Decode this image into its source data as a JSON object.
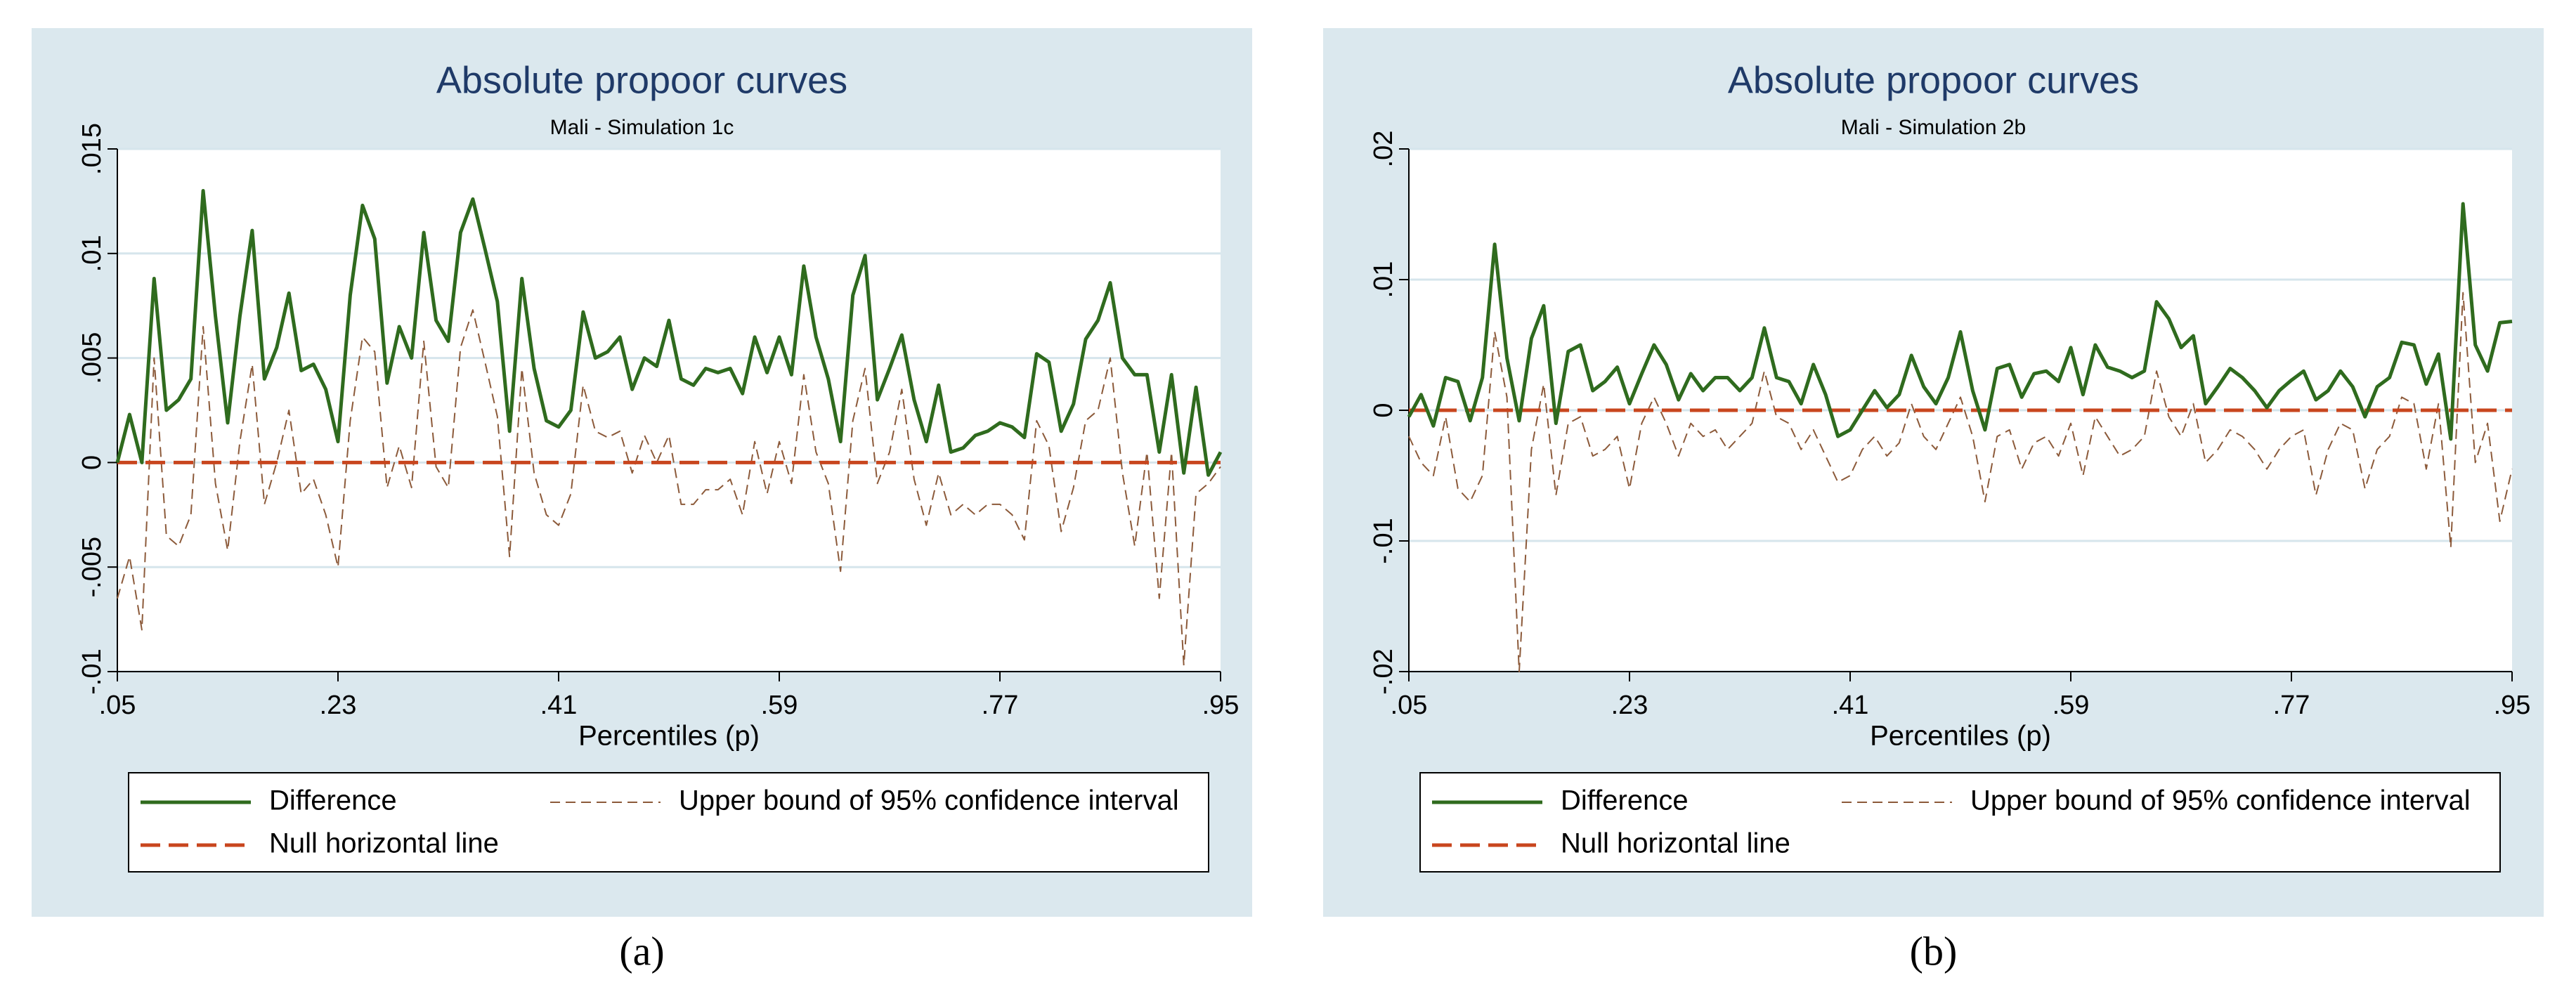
{
  "chart_data": [
    {
      "type": "line",
      "title": "Absolute propoor curves",
      "subtitle": "Mali - Simulation 1c",
      "panel_label": "(a)",
      "x_label": "Percentiles (p)",
      "x": [
        0.05,
        0.06,
        0.07,
        0.08,
        0.09,
        0.1,
        0.11,
        0.12,
        0.13,
        0.14,
        0.15,
        0.16,
        0.17,
        0.18,
        0.19,
        0.2,
        0.21,
        0.22,
        0.23,
        0.24,
        0.25,
        0.26,
        0.27,
        0.28,
        0.29,
        0.3,
        0.31,
        0.32,
        0.33,
        0.34,
        0.35,
        0.36,
        0.37,
        0.38,
        0.39,
        0.4,
        0.41,
        0.42,
        0.43,
        0.44,
        0.45,
        0.46,
        0.47,
        0.48,
        0.49,
        0.5,
        0.51,
        0.52,
        0.53,
        0.54,
        0.55,
        0.56,
        0.57,
        0.58,
        0.59,
        0.6,
        0.61,
        0.62,
        0.63,
        0.64,
        0.65,
        0.66,
        0.67,
        0.68,
        0.69,
        0.7,
        0.71,
        0.72,
        0.73,
        0.74,
        0.75,
        0.76,
        0.77,
        0.78,
        0.79,
        0.8,
        0.81,
        0.82,
        0.83,
        0.84,
        0.85,
        0.86,
        0.87,
        0.88,
        0.89,
        0.9,
        0.91,
        0.92,
        0.93,
        0.94,
        0.95
      ],
      "series": [
        {
          "name": "Difference",
          "color": "#2f6b1e",
          "dash": "solid",
          "values": [
            0,
            0.0023,
            0,
            0.0088,
            0.0025,
            0.003,
            0.004,
            0.013,
            0.007,
            0.0019,
            0.007,
            0.0111,
            0.004,
            0.0055,
            0.0081,
            0.0044,
            0.0047,
            0.0035,
            0.001,
            0.008,
            0.0123,
            0.0107,
            0.0038,
            0.0065,
            0.005,
            0.011,
            0.0068,
            0.0058,
            0.011,
            0.0126,
            0.0102,
            0.0077,
            0.0015,
            0.0088,
            0.0045,
            0.002,
            0.0017,
            0.0025,
            0.0072,
            0.005,
            0.0053,
            0.006,
            0.0035,
            0.005,
            0.0046,
            0.0068,
            0.004,
            0.0037,
            0.0045,
            0.0043,
            0.0045,
            0.0033,
            0.006,
            0.0043,
            0.006,
            0.0042,
            0.0094,
            0.006,
            0.004,
            0.001,
            0.008,
            0.0099,
            0.003,
            0.0045,
            0.0061,
            0.003,
            0.001,
            0.0037,
            0.0005,
            0.0007,
            0.0013,
            0.0015,
            0.0019,
            0.0017,
            0.0012,
            0.0052,
            0.0048,
            0.0015,
            0.0028,
            0.0059,
            0.0068,
            0.0086,
            0.005,
            0.0042,
            0.0042,
            0.0005,
            0.0042,
            -0.0005,
            0.0036,
            -0.0006,
            0.0005
          ]
        },
        {
          "name": "Upper bound of 95% confidence interval",
          "color": "#8c5a3a",
          "dash": "dashed",
          "values": [
            -0.0065,
            -0.0045,
            -0.008,
            0.005,
            -0.0035,
            -0.004,
            -0.0025,
            0.0065,
            -0.001,
            -0.0042,
            0.001,
            0.0047,
            -0.002,
            0,
            0.0025,
            -0.0015,
            -0.0008,
            -0.0025,
            -0.005,
            0.002,
            0.006,
            0.0053,
            -0.0012,
            0.0008,
            -0.0012,
            0.0058,
            -0.0002,
            -0.0012,
            0.0055,
            0.0073,
            0.0048,
            0.0022,
            -0.0045,
            0.0045,
            -0.0005,
            -0.0025,
            -0.003,
            -0.0015,
            0.0037,
            0.0015,
            0.0012,
            0.0015,
            -0.0005,
            0.0013,
            0,
            0.0013,
            -0.002,
            -0.002,
            -0.0013,
            -0.0013,
            -0.0008,
            -0.0025,
            0.001,
            -0.0015,
            0.001,
            -0.001,
            0.0042,
            0.0005,
            -0.001,
            -0.0052,
            0.002,
            0.0045,
            -0.001,
            0.0005,
            0.0035,
            -0.0008,
            -0.003,
            -0.0005,
            -0.0025,
            -0.002,
            -0.0025,
            -0.002,
            -0.002,
            -0.0025,
            -0.0037,
            0.002,
            0.0008,
            -0.0033,
            -0.0012,
            0.002,
            0.0025,
            0.005,
            -0.0005,
            -0.004,
            0.0005,
            -0.0065,
            0.0005,
            -0.0097,
            -0.0015,
            -0.001,
            -0.0002
          ]
        }
      ],
      "hline": {
        "name": "Null horizontal line",
        "color": "#c8461e",
        "value": 0
      },
      "xlim": [
        0.05,
        0.95
      ],
      "xticks": [
        {
          "value": 0.05,
          "label": ".05"
        },
        {
          "value": 0.23,
          "label": ".23"
        },
        {
          "value": 0.41,
          "label": ".41"
        },
        {
          "value": 0.59,
          "label": ".59"
        },
        {
          "value": 0.77,
          "label": ".77"
        },
        {
          "value": 0.95,
          "label": ".95"
        }
      ],
      "ylim": [
        -0.01,
        0.015
      ],
      "yticks": [
        {
          "value": -0.01,
          "label": "-.01"
        },
        {
          "value": -0.005,
          "label": "-.005"
        },
        0,
        {
          "value": 0.005,
          "label": ".005"
        },
        {
          "value": 0.01,
          "label": ".01"
        },
        {
          "value": 0.015,
          "label": ".015"
        }
      ],
      "grid": true
    },
    {
      "type": "line",
      "title": "Absolute propoor curves",
      "subtitle": "Mali - Simulation 2b",
      "panel_label": "(b)",
      "x_label": "Percentiles (p)",
      "x": [
        0.05,
        0.06,
        0.07,
        0.08,
        0.09,
        0.1,
        0.11,
        0.12,
        0.13,
        0.14,
        0.15,
        0.16,
        0.17,
        0.18,
        0.19,
        0.2,
        0.21,
        0.22,
        0.23,
        0.24,
        0.25,
        0.26,
        0.27,
        0.28,
        0.29,
        0.3,
        0.31,
        0.32,
        0.33,
        0.34,
        0.35,
        0.36,
        0.37,
        0.38,
        0.39,
        0.4,
        0.41,
        0.42,
        0.43,
        0.44,
        0.45,
        0.46,
        0.47,
        0.48,
        0.49,
        0.5,
        0.51,
        0.52,
        0.53,
        0.54,
        0.55,
        0.56,
        0.57,
        0.58,
        0.59,
        0.6,
        0.61,
        0.62,
        0.63,
        0.64,
        0.65,
        0.66,
        0.67,
        0.68,
        0.69,
        0.7,
        0.71,
        0.72,
        0.73,
        0.74,
        0.75,
        0.76,
        0.77,
        0.78,
        0.79,
        0.8,
        0.81,
        0.82,
        0.83,
        0.84,
        0.85,
        0.86,
        0.87,
        0.88,
        0.89,
        0.9,
        0.91,
        0.92,
        0.93,
        0.94,
        0.95
      ],
      "series": [
        {
          "name": "Difference",
          "color": "#2f6b1e",
          "dash": "solid",
          "values": [
            -0.0005,
            0.0012,
            -0.0012,
            0.0025,
            0.0022,
            -0.0008,
            0.0025,
            0.0127,
            0.004,
            -0.0008,
            0.0055,
            0.008,
            -0.001,
            0.0045,
            0.005,
            0.0015,
            0.0022,
            0.0033,
            0.0005,
            0.0028,
            0.005,
            0.0035,
            0.0008,
            0.0028,
            0.0015,
            0.0025,
            0.0025,
            0.0015,
            0.0025,
            0.0063,
            0.0025,
            0.0022,
            0.0005,
            0.0035,
            0.0012,
            -0.002,
            -0.0015,
            0,
            0.0015,
            0.0002,
            0.0012,
            0.0042,
            0.0018,
            0.0005,
            0.0025,
            0.006,
            0.0015,
            -0.0015,
            0.0032,
            0.0035,
            0.001,
            0.0028,
            0.003,
            0.0022,
            0.0048,
            0.0012,
            0.005,
            0.0033,
            0.003,
            0.0025,
            0.003,
            0.0083,
            0.007,
            0.0048,
            0.0057,
            0.0005,
            0.0018,
            0.0032,
            0.0025,
            0.0015,
            0.0002,
            0.0015,
            0.0023,
            0.003,
            0.0008,
            0.0015,
            0.003,
            0.0018,
            -0.0005,
            0.0018,
            0.0025,
            0.0052,
            0.005,
            0.002,
            0.0043,
            -0.0022,
            0.0158,
            0.005,
            0.003,
            0.0067,
            0.0068
          ]
        },
        {
          "name": "Upper bound of 95% confidence interval",
          "color": "#8c5a3a",
          "dash": "dashed",
          "values": [
            -0.002,
            -0.004,
            -0.005,
            -0.0005,
            -0.006,
            -0.007,
            -0.005,
            0.006,
            0.001,
            -0.02,
            -0.003,
            0.002,
            -0.0065,
            -0.001,
            -0.0005,
            -0.0035,
            -0.003,
            -0.002,
            -0.006,
            -0.001,
            0.001,
            -0.001,
            -0.0035,
            -0.001,
            -0.002,
            -0.0015,
            -0.003,
            -0.002,
            -0.001,
            0.003,
            -0.0005,
            -0.001,
            -0.003,
            -0.0015,
            -0.0035,
            -0.0055,
            -0.005,
            -0.003,
            -0.002,
            -0.0035,
            -0.0025,
            0.0005,
            -0.002,
            -0.003,
            -0.001,
            0.001,
            -0.002,
            -0.007,
            -0.002,
            -0.0015,
            -0.0045,
            -0.0025,
            -0.002,
            -0.0035,
            -0.001,
            -0.005,
            -0.0005,
            -0.002,
            -0.0035,
            -0.003,
            -0.002,
            0.003,
            -0.0005,
            -0.002,
            0.0005,
            -0.004,
            -0.003,
            -0.0015,
            -0.002,
            -0.003,
            -0.0045,
            -0.003,
            -0.002,
            -0.0015,
            -0.0065,
            -0.003,
            -0.001,
            -0.0015,
            -0.006,
            -0.003,
            -0.002,
            0.001,
            0.0005,
            -0.0045,
            0.0005,
            -0.0105,
            0.009,
            -0.004,
            -0.001,
            -0.0085,
            -0.0045
          ]
        }
      ],
      "hline": {
        "name": "Null horizontal line",
        "color": "#c8461e",
        "value": 0
      },
      "xlim": [
        0.05,
        0.95
      ],
      "xticks": [
        {
          "value": 0.05,
          "label": ".05"
        },
        {
          "value": 0.23,
          "label": ".23"
        },
        {
          "value": 0.41,
          "label": ".41"
        },
        {
          "value": 0.59,
          "label": ".59"
        },
        {
          "value": 0.77,
          "label": ".77"
        },
        {
          "value": 0.95,
          "label": ".95"
        }
      ],
      "ylim": [
        -0.02,
        0.02
      ],
      "yticks": [
        {
          "value": -0.02,
          "label": "-.02"
        },
        {
          "value": -0.01,
          "label": "-.01"
        },
        0,
        {
          "value": 0.01,
          "label": ".01"
        },
        {
          "value": 0.02,
          "label": ".02"
        }
      ],
      "grid": true
    }
  ]
}
